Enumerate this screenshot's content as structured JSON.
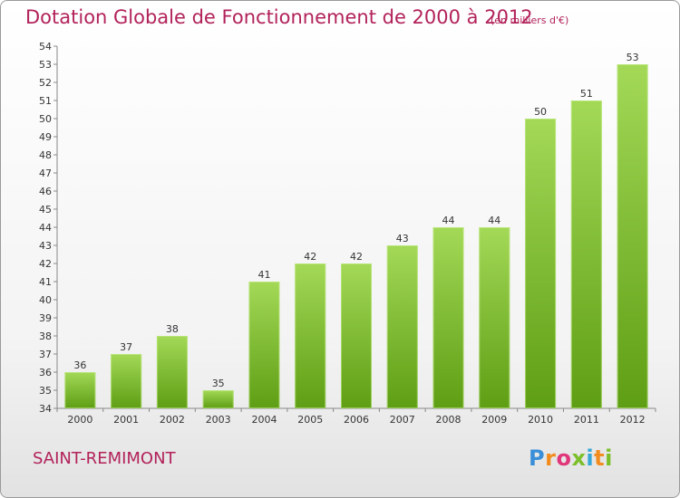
{
  "header": {
    "title": "Dotation Globale de Fonctionnement de 2000 à 2012",
    "subtitle": "(en milliers d'€)"
  },
  "footer": {
    "commune": "SAINT-REMIMONT",
    "logo": "Proxiti"
  },
  "colors": {
    "title": "#b2225a",
    "bar_top": "#a3d957",
    "bar_bottom": "#5e9e14"
  },
  "chart_data": {
    "type": "bar",
    "categories": [
      "2000",
      "2001",
      "2002",
      "2003",
      "2004",
      "2005",
      "2006",
      "2007",
      "2008",
      "2009",
      "2010",
      "2011",
      "2012"
    ],
    "values": [
      36,
      37,
      38,
      35,
      41,
      42,
      42,
      43,
      44,
      44,
      50,
      51,
      53
    ],
    "title": "Dotation Globale de Fonctionnement de 2000 à 2012",
    "ylim": [
      34,
      54
    ],
    "grid": false
  }
}
